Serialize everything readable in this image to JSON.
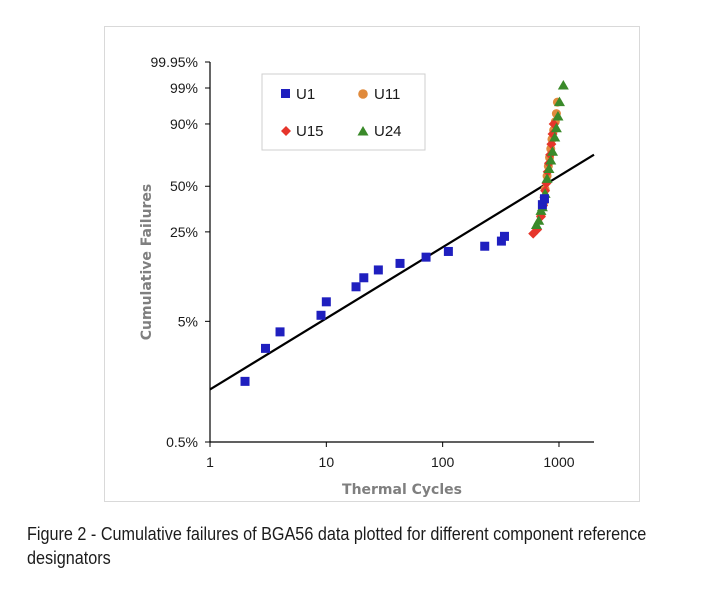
{
  "caption": "Figure 2 - Cumulative failures of BGA56 data plotted for different component reference designators",
  "colors": {
    "U1": "#1f1fbf",
    "U11": "#e08a3c",
    "U15": "#e6352b",
    "U24": "#3a8a2a",
    "fit_line": "#000000",
    "axis_title": "#7f7f7f"
  },
  "chart_data": {
    "type": "scatter",
    "title": "",
    "xlabel": "Thermal Cycles",
    "ylabel": "Cumulative Failures",
    "x_scale": "log",
    "y_scale": "weibull probability",
    "xlim": [
      1,
      2000
    ],
    "ylim_percent": [
      0.5,
      99.95
    ],
    "x_ticks": [
      1,
      10,
      100,
      1000
    ],
    "x_tick_labels": [
      "1",
      "10",
      "100",
      "1000"
    ],
    "y_ticks_percent": [
      0.5,
      5,
      25,
      50,
      90,
      99,
      99.95
    ],
    "y_tick_labels": [
      "0.5%",
      "5%",
      "25%",
      "50%",
      "90%",
      "99%",
      "99.95%"
    ],
    "grid": false,
    "legend_position": "top-left inside",
    "series": [
      {
        "name": "U1",
        "marker": "square",
        "points": [
          [
            2,
            1.6
          ],
          [
            3,
            3.0
          ],
          [
            4,
            4.1
          ],
          [
            9,
            5.6
          ],
          [
            10,
            7.2
          ],
          [
            18,
            9.5
          ],
          [
            21,
            11.2
          ],
          [
            28,
            12.9
          ],
          [
            43,
            14.5
          ],
          [
            72,
            16.2
          ],
          [
            112,
            17.9
          ],
          [
            230,
            19.6
          ],
          [
            320,
            21.4
          ],
          [
            340,
            23.2
          ],
          [
            720,
            38.5
          ],
          [
            750,
            42.0
          ]
        ]
      },
      {
        "name": "U11",
        "marker": "circle",
        "points": [
          [
            700,
            33
          ],
          [
            740,
            40
          ],
          [
            760,
            48
          ],
          [
            790,
            57
          ],
          [
            810,
            64
          ],
          [
            830,
            70
          ],
          [
            850,
            76
          ],
          [
            870,
            82
          ],
          [
            900,
            87
          ],
          [
            930,
            91
          ],
          [
            950,
            94
          ],
          [
            970,
            97
          ]
        ]
      },
      {
        "name": "U15",
        "marker": "diamond",
        "points": [
          [
            600,
            24.3
          ],
          [
            650,
            26
          ],
          [
            700,
            32
          ],
          [
            730,
            38
          ],
          [
            750,
            43
          ],
          [
            760,
            47
          ],
          [
            780,
            52
          ],
          [
            800,
            60
          ],
          [
            820,
            66
          ],
          [
            840,
            72
          ],
          [
            860,
            79
          ],
          [
            880,
            85
          ],
          [
            900,
            90
          ]
        ]
      },
      {
        "name": "U24",
        "marker": "triangle",
        "points": [
          [
            640,
            28
          ],
          [
            670,
            30
          ],
          [
            700,
            35
          ],
          [
            720,
            37
          ],
          [
            760,
            45
          ],
          [
            790,
            55
          ],
          [
            820,
            62
          ],
          [
            850,
            68
          ],
          [
            880,
            74
          ],
          [
            920,
            83
          ],
          [
            950,
            88
          ],
          [
            980,
            93
          ],
          [
            1010,
            97
          ],
          [
            1090,
            99.2
          ]
        ]
      }
    ],
    "fit_line": {
      "x": [
        1,
        2000
      ],
      "y_percent": [
        1.37,
        72
      ]
    }
  }
}
